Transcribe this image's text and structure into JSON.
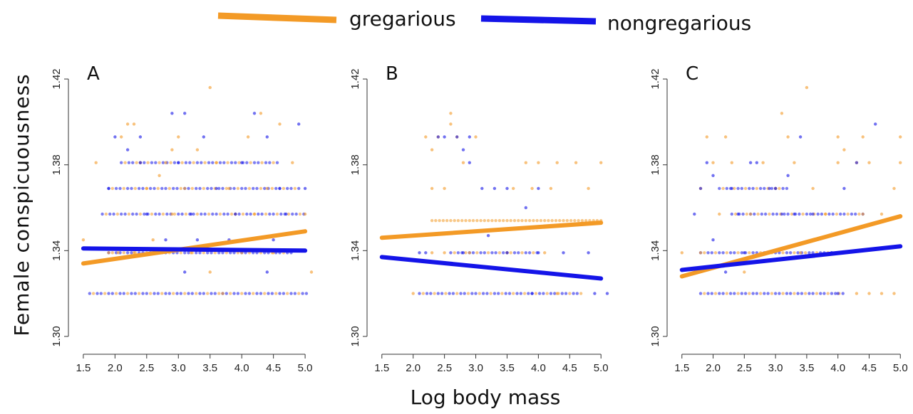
{
  "colors": {
    "gregarious": "#f39a26",
    "nongregarious": "#1414e8",
    "text": "#111111"
  },
  "chart_data": [
    {
      "type": "scatter",
      "panel": "A",
      "xlabel": "Log body mass",
      "ylabel": "Female conspicuousness",
      "xlim": [
        1.4,
        5.1
      ],
      "ylim": [
        1.295,
        1.425
      ],
      "xticks": [
        "1.5",
        "2.0",
        "2.5",
        "3.0",
        "3.5",
        "4.0",
        "4.5",
        "5.0"
      ],
      "yticks": [
        "1.30",
        "1.34",
        "1.38",
        "1.42"
      ],
      "series": [
        {
          "name": "gregarious",
          "fit": {
            "x": [
              1.5,
              5.0
            ],
            "y": [
              1.334,
              1.349
            ]
          },
          "points": [
            [
              1.5,
              1.345
            ],
            [
              1.7,
              1.381
            ],
            [
              1.9,
              1.339
            ],
            [
              2.05,
              1.339
            ],
            [
              2.1,
              1.393
            ],
            [
              2.2,
              1.399
            ],
            [
              2.3,
              1.399
            ],
            [
              2.4,
              1.381
            ],
            [
              2.5,
              1.369
            ],
            [
              2.6,
              1.345
            ],
            [
              2.7,
              1.375
            ],
            [
              2.8,
              1.381
            ],
            [
              2.9,
              1.387
            ],
            [
              3.0,
              1.393
            ],
            [
              3.1,
              1.369
            ],
            [
              3.3,
              1.387
            ],
            [
              3.5,
              1.416
            ],
            [
              3.6,
              1.381
            ],
            [
              3.8,
              1.369
            ],
            [
              3.9,
              1.357
            ],
            [
              4.1,
              1.393
            ],
            [
              4.3,
              1.404
            ],
            [
              4.4,
              1.369
            ],
            [
              4.6,
              1.399
            ],
            [
              4.8,
              1.381
            ],
            [
              5.0,
              1.357
            ],
            [
              5.1,
              1.33
            ],
            [
              2.6,
              1.339
            ],
            [
              3.2,
              1.339
            ],
            [
              3.5,
              1.33
            ],
            [
              4.0,
              1.339
            ],
            [
              4.5,
              1.339
            ],
            [
              3.7,
              1.32
            ],
            [
              2.3,
              1.339
            ],
            [
              4.2,
              1.357
            ],
            [
              2.9,
              1.357
            ]
          ]
        },
        {
          "name": "nongregarious",
          "fit": {
            "x": [
              1.5,
              5.0
            ],
            "y": [
              1.341,
              1.34
            ]
          },
          "points": [
            [
              2.0,
              1.393
            ],
            [
              2.2,
              1.387
            ],
            [
              2.4,
              1.393
            ],
            [
              2.9,
              1.404
            ],
            [
              3.1,
              1.404
            ],
            [
              3.0,
              1.381
            ],
            [
              3.2,
              1.357
            ],
            [
              3.4,
              1.393
            ],
            [
              3.6,
              1.369
            ],
            [
              3.8,
              1.345
            ],
            [
              4.0,
              1.381
            ],
            [
              4.2,
              1.404
            ],
            [
              4.4,
              1.393
            ],
            [
              4.6,
              1.369
            ],
            [
              4.9,
              1.399
            ],
            [
              5.0,
              1.369
            ],
            [
              1.9,
              1.369
            ],
            [
              2.5,
              1.357
            ],
            [
              2.8,
              1.345
            ],
            [
              3.3,
              1.345
            ],
            [
              3.9,
              1.357
            ],
            [
              4.5,
              1.345
            ],
            [
              4.7,
              1.357
            ],
            [
              3.1,
              1.33
            ],
            [
              4.4,
              1.33
            ],
            [
              2.4,
              1.381
            ]
          ]
        }
      ],
      "bands": [
        {
          "y": 1.32,
          "x": [
            1.6,
            5.05
          ]
        },
        {
          "y": 1.339,
          "x": [
            1.9,
            4.8
          ]
        },
        {
          "y": 1.357,
          "x": [
            1.8,
            5.0
          ]
        },
        {
          "y": 1.369,
          "x": [
            1.9,
            4.9
          ]
        },
        {
          "y": 1.381,
          "x": [
            2.1,
            4.6
          ]
        }
      ]
    },
    {
      "type": "scatter",
      "panel": "B",
      "xlabel": "Log body mass",
      "ylabel": "Female conspicuousness",
      "xlim": [
        1.4,
        5.1
      ],
      "ylim": [
        1.295,
        1.425
      ],
      "xticks": [
        "1.5",
        "2.0",
        "2.5",
        "3.0",
        "3.5",
        "4.0",
        "4.5",
        "5.0"
      ],
      "yticks": [
        "1.30",
        "1.34",
        "1.38",
        "1.42"
      ],
      "series": [
        {
          "name": "gregarious",
          "fit": {
            "x": [
              1.5,
              5.0
            ],
            "y": [
              1.346,
              1.353
            ]
          },
          "points": [
            [
              2.2,
              1.393
            ],
            [
              2.3,
              1.387
            ],
            [
              2.4,
              1.393
            ],
            [
              2.6,
              1.404
            ],
            [
              2.6,
              1.399
            ],
            [
              2.7,
              1.393
            ],
            [
              2.8,
              1.381
            ],
            [
              2.3,
              1.369
            ],
            [
              2.5,
              1.369
            ],
            [
              3.0,
              1.393
            ],
            [
              3.8,
              1.381
            ],
            [
              4.0,
              1.381
            ],
            [
              4.3,
              1.381
            ],
            [
              4.6,
              1.381
            ],
            [
              5.0,
              1.381
            ],
            [
              3.6,
              1.369
            ],
            [
              3.9,
              1.369
            ],
            [
              4.2,
              1.369
            ],
            [
              4.8,
              1.369
            ],
            [
              2.0,
              1.32
            ],
            [
              2.3,
              1.339
            ],
            [
              2.5,
              1.339
            ],
            [
              3.5,
              1.339
            ],
            [
              4.1,
              1.339
            ],
            [
              4.3,
              1.32
            ],
            [
              2.9,
              1.339
            ]
          ]
        },
        {
          "name": "nongregarious",
          "fit": {
            "x": [
              1.5,
              5.0
            ],
            "y": [
              1.337,
              1.327
            ]
          },
          "points": [
            [
              2.4,
              1.393
            ],
            [
              2.5,
              1.393
            ],
            [
              2.7,
              1.393
            ],
            [
              2.9,
              1.393
            ],
            [
              2.8,
              1.387
            ],
            [
              2.9,
              1.381
            ],
            [
              3.1,
              1.369
            ],
            [
              3.3,
              1.369
            ],
            [
              3.5,
              1.369
            ],
            [
              3.8,
              1.36
            ],
            [
              4.0,
              1.369
            ],
            [
              3.2,
              1.347
            ],
            [
              2.2,
              1.339
            ],
            [
              2.8,
              1.339
            ],
            [
              3.5,
              1.339
            ],
            [
              4.0,
              1.339
            ],
            [
              4.4,
              1.339
            ],
            [
              4.8,
              1.339
            ],
            [
              4.9,
              1.32
            ],
            [
              5.1,
              1.32
            ],
            [
              2.1,
              1.339
            ],
            [
              3.9,
              1.32
            ]
          ]
        }
      ],
      "bands": [
        {
          "y": 1.354,
          "x": [
            2.3,
            5.0
          ],
          "series": "gregarious"
        },
        {
          "y": 1.32,
          "x": [
            2.1,
            4.7
          ]
        },
        {
          "y": 1.339,
          "x": [
            2.6,
            4.0
          ]
        }
      ]
    },
    {
      "type": "scatter",
      "panel": "C",
      "xlabel": "Log body mass",
      "ylabel": "Female conspicuousness",
      "xlim": [
        1.4,
        5.1
      ],
      "ylim": [
        1.295,
        1.425
      ],
      "xticks": [
        "1.5",
        "2.0",
        "2.5",
        "3.0",
        "3.5",
        "4.0",
        "4.5",
        "5.0"
      ],
      "yticks": [
        "1.30",
        "1.34",
        "1.38",
        "1.42"
      ],
      "series": [
        {
          "name": "gregarious",
          "fit": {
            "x": [
              1.5,
              5.0
            ],
            "y": [
              1.328,
              1.356
            ]
          },
          "points": [
            [
              1.5,
              1.339
            ],
            [
              1.8,
              1.369
            ],
            [
              1.9,
              1.393
            ],
            [
              2.2,
              1.393
            ],
            [
              2.0,
              1.381
            ],
            [
              2.1,
              1.357
            ],
            [
              2.3,
              1.381
            ],
            [
              2.6,
              1.357
            ],
            [
              2.8,
              1.381
            ],
            [
              3.0,
              1.369
            ],
            [
              3.1,
              1.404
            ],
            [
              3.2,
              1.393
            ],
            [
              3.5,
              1.416
            ],
            [
              3.3,
              1.381
            ],
            [
              3.6,
              1.369
            ],
            [
              3.8,
              1.357
            ],
            [
              4.0,
              1.393
            ],
            [
              4.1,
              1.387
            ],
            [
              4.0,
              1.381
            ],
            [
              4.3,
              1.381
            ],
            [
              4.4,
              1.393
            ],
            [
              4.5,
              1.381
            ],
            [
              4.9,
              1.369
            ],
            [
              5.0,
              1.393
            ],
            [
              5.0,
              1.381
            ],
            [
              4.3,
              1.32
            ],
            [
              4.5,
              1.32
            ],
            [
              4.7,
              1.32
            ],
            [
              4.9,
              1.32
            ],
            [
              4.4,
              1.357
            ],
            [
              4.7,
              1.357
            ],
            [
              2.5,
              1.33
            ],
            [
              3.4,
              1.339
            ],
            [
              1.8,
              1.339
            ]
          ]
        },
        {
          "name": "nongregarious",
          "fit": {
            "x": [
              1.5,
              5.0
            ],
            "y": [
              1.331,
              1.342
            ]
          },
          "points": [
            [
              1.9,
              1.381
            ],
            [
              2.0,
              1.375
            ],
            [
              1.8,
              1.369
            ],
            [
              2.3,
              1.369
            ],
            [
              2.4,
              1.357
            ],
            [
              2.6,
              1.381
            ],
            [
              2.7,
              1.381
            ],
            [
              2.9,
              1.369
            ],
            [
              3.0,
              1.369
            ],
            [
              3.2,
              1.375
            ],
            [
              3.4,
              1.393
            ],
            [
              3.6,
              1.357
            ],
            [
              3.9,
              1.339
            ],
            [
              4.0,
              1.32
            ],
            [
              4.1,
              1.369
            ],
            [
              4.3,
              1.381
            ],
            [
              4.6,
              1.399
            ],
            [
              1.7,
              1.357
            ],
            [
              2.2,
              1.33
            ],
            [
              2.5,
              1.339
            ],
            [
              3.1,
              1.357
            ],
            [
              3.3,
              1.357
            ],
            [
              2.0,
              1.345
            ]
          ]
        }
      ],
      "bands": [
        {
          "y": 1.32,
          "x": [
            1.8,
            4.1
          ]
        },
        {
          "y": 1.339,
          "x": [
            1.8,
            3.9
          ]
        },
        {
          "y": 1.357,
          "x": [
            2.3,
            4.4
          ]
        },
        {
          "y": 1.369,
          "x": [
            2.1,
            3.2
          ]
        }
      ]
    }
  ],
  "legend": {
    "items": [
      {
        "label": "gregarious",
        "color": "#f39a26"
      },
      {
        "label": "nongregarious",
        "color": "#1414e8"
      }
    ]
  },
  "figure": {
    "ylabel": "Female conspicuousness",
    "xlabel": "Log body mass",
    "panels": [
      "A",
      "B",
      "C"
    ]
  }
}
